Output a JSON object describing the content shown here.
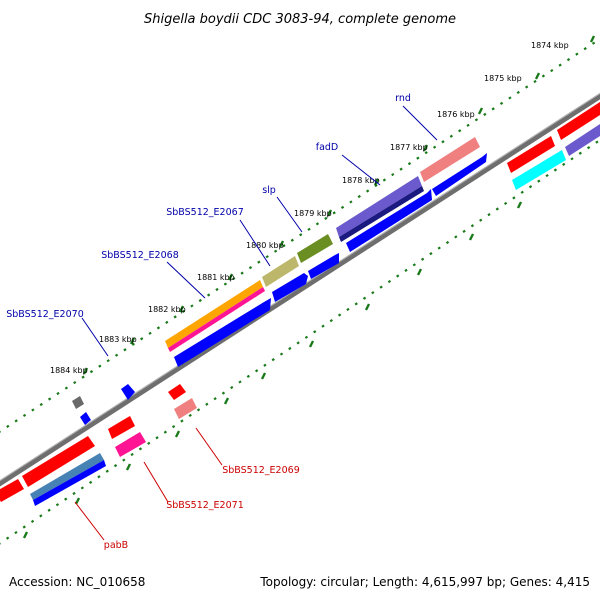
{
  "title": "Shigella boydii CDC 3083-94, complete genome",
  "footer": {
    "accession": "Accession: NC_010658",
    "summary": "Topology: circular; Length: 4,615,997 bp; Genes: 4,415"
  },
  "scale_labels": [
    "1874 kbp",
    "1875 kbp",
    "1876 kbp",
    "1877 kbp",
    "1878 kbp",
    "1879 kbp",
    "1880 kbp",
    "1881 kbp",
    "1882 kbp",
    "1883 kbp",
    "1884 kbp"
  ],
  "gene_labels": {
    "rnd": "rnd",
    "fadD": "fadD",
    "slp": "slp",
    "e2067": "SbBS512_E2067",
    "e2068": "SbBS512_E2068",
    "e2070": "SbBS512_E2070",
    "e2069": "SbBS512_E2069",
    "e2071": "SbBS512_E2071",
    "pabB": "pabB"
  },
  "colors": {
    "forward_label": "#0000aa",
    "reverse_label": "#cc0000",
    "axis": "#808080",
    "tick": "#1a7a1a"
  }
}
